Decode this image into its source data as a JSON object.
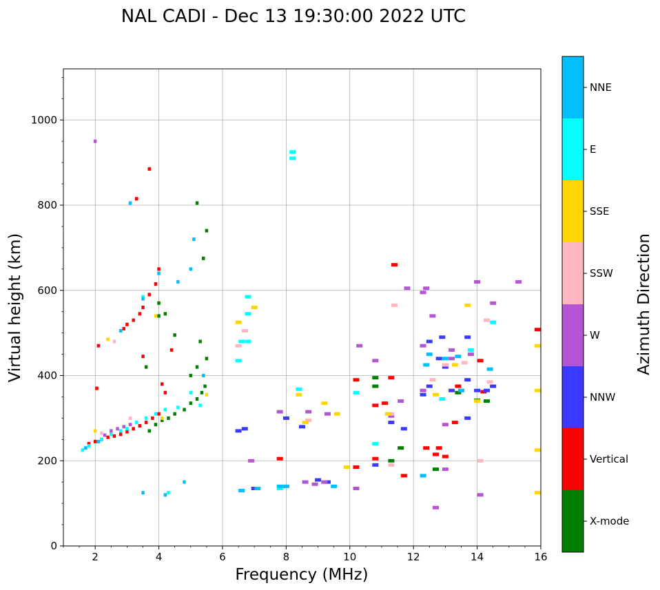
{
  "chart_data": {
    "type": "scatter",
    "title": "NAL CADI - Dec 13 19:30:00 2022 UTC",
    "xlabel": "Frequency (MHz)",
    "ylabel": "Virtual height (km)",
    "xlim": [
      1,
      16
    ],
    "ylim": [
      0,
      1120
    ],
    "xticks": [
      2,
      4,
      6,
      8,
      10,
      12,
      14,
      16
    ],
    "yticks": [
      0,
      200,
      400,
      600,
      800,
      1000
    ],
    "grid": true,
    "colorbar": {
      "label": "Azimuth Direction",
      "categories": [
        {
          "name": "X-mode",
          "color": "#008000"
        },
        {
          "name": "Vertical",
          "color": "#ff0000"
        },
        {
          "name": "NNW",
          "color": "#3a3aff"
        },
        {
          "name": "W",
          "color": "#b455d4"
        },
        {
          "name": "SSW",
          "color": "#ffb6c1"
        },
        {
          "name": "SSE",
          "color": "#ffd700"
        },
        {
          "name": "E",
          "color": "#00ffff"
        },
        {
          "name": "NNE",
          "color": "#00bfff"
        }
      ]
    },
    "series": [
      {
        "name": "X-mode",
        "points": [
          [
            3.7,
            270
          ],
          [
            3.9,
            285
          ],
          [
            4.1,
            295
          ],
          [
            4.3,
            300
          ],
          [
            4.5,
            310
          ],
          [
            4.8,
            320
          ],
          [
            5.0,
            335
          ],
          [
            5.2,
            345
          ],
          [
            5.35,
            360
          ],
          [
            5.45,
            375
          ],
          [
            5.0,
            400
          ],
          [
            5.2,
            420
          ],
          [
            5.5,
            440
          ],
          [
            5.3,
            480
          ],
          [
            4.0,
            570
          ],
          [
            4.2,
            545
          ],
          [
            4.5,
            495
          ],
          [
            5.4,
            675
          ],
          [
            5.5,
            740
          ],
          [
            5.2,
            805
          ],
          [
            10.8,
            395
          ],
          [
            10.8,
            375
          ],
          [
            11.3,
            200
          ],
          [
            11.6,
            230
          ],
          [
            12.7,
            180
          ],
          [
            13.4,
            360
          ],
          [
            14.3,
            340
          ],
          [
            14.0,
            342
          ],
          [
            4.0,
            540
          ],
          [
            3.6,
            420
          ]
        ]
      },
      {
        "name": "Vertical",
        "points": [
          [
            1.8,
            240
          ],
          [
            2.0,
            245
          ],
          [
            2.2,
            250
          ],
          [
            2.4,
            255
          ],
          [
            2.6,
            258
          ],
          [
            2.8,
            262
          ],
          [
            3.0,
            268
          ],
          [
            3.2,
            275
          ],
          [
            3.4,
            282
          ],
          [
            3.6,
            290
          ],
          [
            3.8,
            300
          ],
          [
            4.0,
            310
          ],
          [
            4.2,
            360
          ],
          [
            4.1,
            380
          ],
          [
            2.1,
            470
          ],
          [
            2.9,
            510
          ],
          [
            3.0,
            520
          ],
          [
            3.2,
            530
          ],
          [
            3.4,
            545
          ],
          [
            3.5,
            560
          ],
          [
            3.7,
            590
          ],
          [
            3.9,
            615
          ],
          [
            4.0,
            650
          ],
          [
            3.5,
            445
          ],
          [
            4.4,
            460
          ],
          [
            2.05,
            370
          ],
          [
            3.3,
            815
          ],
          [
            3.7,
            885
          ],
          [
            10.2,
            390
          ],
          [
            10.2,
            185
          ],
          [
            10.8,
            205
          ],
          [
            10.8,
            330
          ],
          [
            11.1,
            335
          ],
          [
            11.3,
            395
          ],
          [
            11.4,
            660
          ],
          [
            11.7,
            165
          ],
          [
            12.4,
            230
          ],
          [
            12.7,
            215
          ],
          [
            12.8,
            230
          ],
          [
            13.0,
            210
          ],
          [
            13.3,
            290
          ],
          [
            13.4,
            375
          ],
          [
            14.2,
            362
          ],
          [
            14.1,
            435
          ],
          [
            16.0,
            508
          ],
          [
            7.8,
            205
          ]
        ]
      },
      {
        "name": "NNW",
        "points": [
          [
            8.0,
            300
          ],
          [
            8.5,
            280
          ],
          [
            9.0,
            155
          ],
          [
            9.3,
            150
          ],
          [
            7.0,
            135
          ],
          [
            6.5,
            270
          ],
          [
            6.7,
            275
          ],
          [
            10.8,
            190
          ],
          [
            11.3,
            290
          ],
          [
            11.7,
            275
          ],
          [
            12.3,
            355
          ],
          [
            12.5,
            375
          ],
          [
            12.8,
            440
          ],
          [
            13.0,
            420
          ],
          [
            13.2,
            365
          ],
          [
            13.5,
            365
          ],
          [
            13.7,
            490
          ],
          [
            13.7,
            300
          ],
          [
            14.0,
            365
          ],
          [
            14.5,
            375
          ],
          [
            12.5,
            480
          ],
          [
            12.9,
            490
          ],
          [
            13.7,
            390
          ],
          [
            14.3,
            365
          ]
        ]
      },
      {
        "name": "W",
        "points": [
          [
            2.5,
            270
          ],
          [
            2.7,
            275
          ],
          [
            2.9,
            280
          ],
          [
            3.1,
            285
          ],
          [
            3.3,
            290
          ],
          [
            2.3,
            260
          ],
          [
            8.6,
            150
          ],
          [
            8.9,
            145
          ],
          [
            9.2,
            150
          ],
          [
            9.3,
            310
          ],
          [
            8.7,
            315
          ],
          [
            10.8,
            435
          ],
          [
            10.3,
            470
          ],
          [
            11.3,
            305
          ],
          [
            11.6,
            340
          ],
          [
            12.3,
            365
          ],
          [
            12.3,
            470
          ],
          [
            12.6,
            540
          ],
          [
            13.0,
            285
          ],
          [
            13.2,
            440
          ],
          [
            13.8,
            450
          ],
          [
            14.0,
            620
          ],
          [
            14.5,
            570
          ],
          [
            15.3,
            620
          ],
          [
            11.8,
            605
          ],
          [
            12.4,
            605
          ],
          [
            12.7,
            90
          ],
          [
            13.0,
            180
          ],
          [
            14.1,
            120
          ],
          [
            7.8,
            315
          ],
          [
            6.9,
            200
          ],
          [
            10.2,
            135
          ],
          [
            2.0,
            950
          ],
          [
            12.3,
            595
          ],
          [
            13.2,
            460
          ]
        ]
      },
      {
        "name": "SSW",
        "points": [
          [
            2.2,
            265
          ],
          [
            2.6,
            480
          ],
          [
            3.1,
            300
          ],
          [
            6.5,
            470
          ],
          [
            6.7,
            505
          ],
          [
            8.7,
            295
          ],
          [
            11.3,
            310
          ],
          [
            11.4,
            565
          ],
          [
            11.3,
            190
          ],
          [
            12.6,
            390
          ],
          [
            13.0,
            425
          ],
          [
            13.6,
            430
          ],
          [
            14.1,
            200
          ],
          [
            14.3,
            530
          ],
          [
            14.4,
            385
          ]
        ]
      },
      {
        "name": "SSE",
        "points": [
          [
            2.0,
            270
          ],
          [
            2.4,
            485
          ],
          [
            3.9,
            540
          ],
          [
            4.1,
            300
          ],
          [
            5.5,
            355
          ],
          [
            6.5,
            525
          ],
          [
            7.0,
            560
          ],
          [
            8.4,
            355
          ],
          [
            9.2,
            335
          ],
          [
            9.6,
            310
          ],
          [
            9.9,
            185
          ],
          [
            11.2,
            310
          ],
          [
            12.7,
            355
          ],
          [
            13.3,
            425
          ],
          [
            13.7,
            565
          ],
          [
            14.0,
            340
          ],
          [
            16.0,
            470
          ],
          [
            16.0,
            225
          ],
          [
            16.0,
            125
          ],
          [
            16.0,
            365
          ],
          [
            8.6,
            290
          ]
        ]
      },
      {
        "name": "E",
        "points": [
          [
            1.6,
            225
          ],
          [
            1.8,
            235
          ],
          [
            2.2,
            250
          ],
          [
            2.5,
            262
          ],
          [
            2.8,
            270
          ],
          [
            3.0,
            275
          ],
          [
            3.3,
            290
          ],
          [
            3.6,
            300
          ],
          [
            3.9,
            310
          ],
          [
            4.2,
            320
          ],
          [
            4.6,
            325
          ],
          [
            5.0,
            360
          ],
          [
            5.3,
            330
          ],
          [
            6.5,
            435
          ],
          [
            6.6,
            480
          ],
          [
            6.8,
            480
          ],
          [
            6.8,
            545
          ],
          [
            6.8,
            585
          ],
          [
            8.2,
            925
          ],
          [
            8.2,
            910
          ],
          [
            7.8,
            135
          ],
          [
            6.6,
            130
          ],
          [
            10.8,
            240
          ],
          [
            10.2,
            360
          ],
          [
            12.9,
            345
          ],
          [
            13.8,
            460
          ],
          [
            14.5,
            525
          ],
          [
            8.4,
            368
          ],
          [
            3.5,
            585
          ],
          [
            4.3,
            125
          ]
        ]
      },
      {
        "name": "NNE",
        "points": [
          [
            1.7,
            230
          ],
          [
            2.1,
            245
          ],
          [
            3.5,
            125
          ],
          [
            4.0,
            640
          ],
          [
            4.6,
            620
          ],
          [
            4.2,
            120
          ],
          [
            5.1,
            720
          ],
          [
            5.0,
            650
          ],
          [
            5.4,
            400
          ],
          [
            6.6,
            130
          ],
          [
            7.1,
            135
          ],
          [
            7.8,
            140
          ],
          [
            8.0,
            140
          ],
          [
            9.5,
            140
          ],
          [
            12.4,
            425
          ],
          [
            12.5,
            450
          ],
          [
            13.0,
            440
          ],
          [
            13.4,
            445
          ],
          [
            13.5,
            365
          ],
          [
            14.4,
            415
          ],
          [
            12.3,
            165
          ],
          [
            3.1,
            805
          ],
          [
            4.8,
            150
          ],
          [
            2.8,
            505
          ],
          [
            3.5,
            580
          ]
        ]
      }
    ]
  }
}
